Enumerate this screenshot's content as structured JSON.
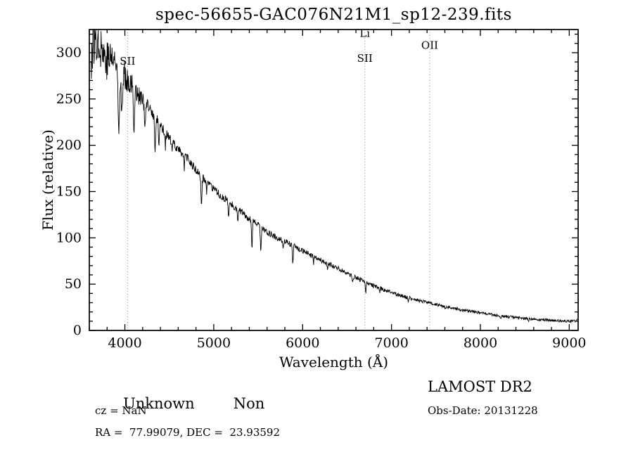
{
  "chart_data": {
    "type": "line",
    "title": "spec-56655-GAC076N21M1_sp12-239.fits",
    "xlabel": "Wavelength (Å)",
    "ylabel": "Flux (relative)",
    "xlim": [
      3600,
      9100
    ],
    "ylim": [
      0,
      325
    ],
    "xticks": [
      4000,
      5000,
      6000,
      7000,
      8000,
      9000
    ],
    "yticks": [
      0,
      50,
      100,
      150,
      200,
      250,
      300
    ],
    "x_minor_step": 200,
    "y_minor_step": 10,
    "grid": false,
    "legend": "none",
    "line_color": "#000000",
    "marker_color": "#b08a8a",
    "continuum": {
      "x": [
        3620,
        3650,
        3700,
        3750,
        3800,
        3850,
        3900,
        3950,
        4000,
        4100,
        4200,
        4300,
        4400,
        4500,
        4600,
        4700,
        4800,
        4900,
        5000,
        5200,
        5400,
        5600,
        5800,
        6000,
        6200,
        6400,
        6600,
        6800,
        7000,
        7200,
        7400,
        7600,
        7800,
        8000,
        8200,
        8400,
        8600,
        8800,
        9000,
        9100
      ],
      "flux": [
        295,
        312,
        318,
        302,
        292,
        296,
        286,
        280,
        276,
        262,
        248,
        236,
        222,
        207,
        196,
        186,
        173,
        162,
        152,
        136,
        121,
        106,
        96,
        86,
        76,
        67,
        57,
        48,
        41,
        35,
        30,
        26,
        22,
        19,
        16,
        14,
        12,
        11,
        10,
        11
      ]
    },
    "absorption_features": [
      {
        "center": 3933,
        "depth": 55,
        "sigma": 8
      },
      {
        "center": 3968,
        "depth": 45,
        "sigma": 8
      },
      {
        "center": 4101,
        "depth": 40,
        "sigma": 7
      },
      {
        "center": 4227,
        "depth": 28,
        "sigma": 5
      },
      {
        "center": 4340,
        "depth": 38,
        "sigma": 6
      },
      {
        "center": 4383,
        "depth": 22,
        "sigma": 5
      },
      {
        "center": 4455,
        "depth": 15,
        "sigma": 4
      },
      {
        "center": 4531,
        "depth": 12,
        "sigma": 4
      },
      {
        "center": 4668,
        "depth": 14,
        "sigma": 4
      },
      {
        "center": 4861,
        "depth": 30,
        "sigma": 6
      },
      {
        "center": 4920,
        "depth": 10,
        "sigma": 4
      },
      {
        "center": 5167,
        "depth": 16,
        "sigma": 5
      },
      {
        "center": 5270,
        "depth": 14,
        "sigma": 5
      },
      {
        "center": 5430,
        "depth": 30,
        "sigma": 5
      },
      {
        "center": 5530,
        "depth": 26,
        "sigma": 5
      },
      {
        "center": 5780,
        "depth": 10,
        "sigma": 4
      },
      {
        "center": 5890,
        "depth": 18,
        "sigma": 5
      },
      {
        "center": 6122,
        "depth": 8,
        "sigma": 4
      },
      {
        "center": 6280,
        "depth": 6,
        "sigma": 4
      },
      {
        "center": 6563,
        "depth": 8,
        "sigma": 5
      },
      {
        "center": 6710,
        "depth": 12,
        "sigma": 5
      },
      {
        "center": 6867,
        "depth": 6,
        "sigma": 4
      },
      {
        "center": 7190,
        "depth": 4,
        "sigma": 4
      },
      {
        "center": 7605,
        "depth": 4,
        "sigma": 4
      },
      {
        "center": 8230,
        "depth": 3,
        "sigma": 4
      },
      {
        "center": 8542,
        "depth": 3,
        "sigma": 4
      }
    ],
    "noise": {
      "seed": 77,
      "base_frac": 0.02,
      "blue_amp": 20
    },
    "line_markers": [
      {
        "wavelength": 4030,
        "labels": [
          "SII"
        ],
        "label_flux": [
          287
        ]
      },
      {
        "wavelength": 6700,
        "labels": [
          "Li",
          "SII"
        ],
        "label_flux": [
          317,
          290
        ]
      },
      {
        "wavelength": 7430,
        "labels": [
          "OII"
        ],
        "label_flux": [
          304
        ]
      }
    ]
  },
  "footer": {
    "class": "Unknown",
    "subclass": "Non",
    "survey": "LAMOST DR2",
    "cz": "cz = NaN",
    "obs_date": "Obs-Date: 20131228",
    "coordinates": "RA =  77.99079, DEC =  23.93592"
  }
}
